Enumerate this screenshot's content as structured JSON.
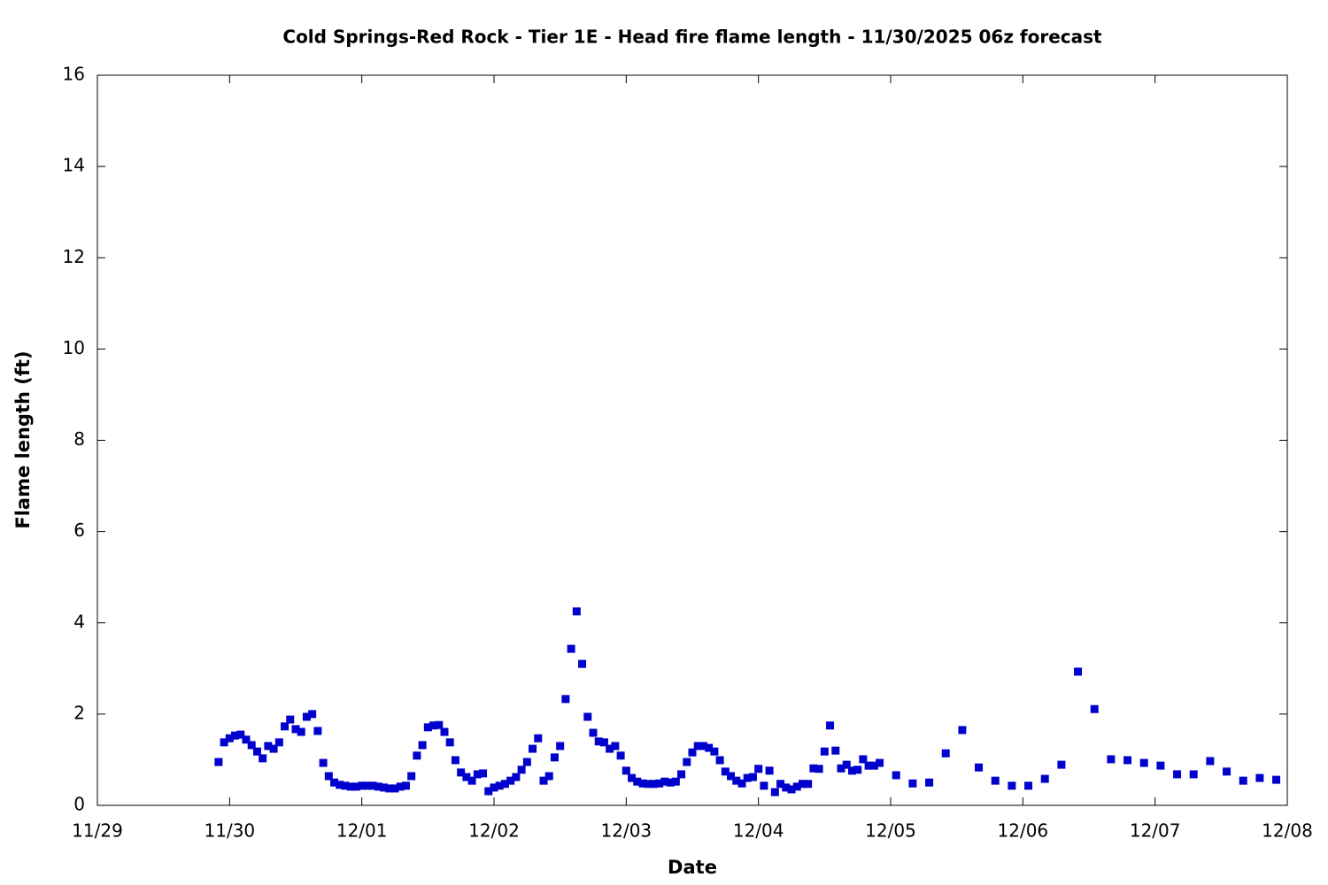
{
  "chart_data": {
    "type": "scatter",
    "title": "Cold Springs-Red Rock - Tier 1E - Head fire flame length - 11/30/2025 06z forecast",
    "x_label": "Date",
    "y_label": "Flame length (ft)",
    "color": "#0000cc",
    "xlim": [
      0,
      216
    ],
    "xticks": [
      {
        "value": 0,
        "label": "11/29"
      },
      {
        "value": 24,
        "label": "11/30"
      },
      {
        "value": 48,
        "label": "12/01"
      },
      {
        "value": 72,
        "label": "12/02"
      },
      {
        "value": 96,
        "label": "12/03"
      },
      {
        "value": 120,
        "label": "12/04"
      },
      {
        "value": 144,
        "label": "12/05"
      },
      {
        "value": 168,
        "label": "12/06"
      },
      {
        "value": 192,
        "label": "12/07"
      },
      {
        "value": 216,
        "label": "12/08"
      }
    ],
    "ylim": [
      0,
      16
    ],
    "yticks": [
      0,
      2,
      4,
      6,
      8,
      10,
      12,
      14,
      16
    ],
    "x": [
      22,
      23,
      24,
      25,
      26,
      27,
      28,
      29,
      30,
      31,
      32,
      33,
      34,
      35,
      36,
      37,
      38,
      39,
      40,
      41,
      42,
      43,
      44,
      45,
      46,
      47,
      48,
      49,
      50,
      51,
      52,
      53,
      54,
      55,
      56,
      57,
      58,
      59,
      60,
      61,
      62,
      63,
      64,
      65,
      66,
      67,
      68,
      69,
      70,
      71,
      72,
      73,
      74,
      75,
      76,
      77,
      78,
      79,
      80,
      81,
      82,
      83,
      84,
      85,
      86,
      87,
      88,
      89,
      90,
      91,
      92,
      93,
      94,
      95,
      96,
      97,
      98,
      99,
      100,
      101,
      102,
      103,
      104,
      105,
      106,
      107,
      108,
      109,
      110,
      111,
      112,
      113,
      114,
      115,
      116,
      117,
      118,
      119,
      120,
      121,
      122,
      123,
      124,
      125,
      126,
      127,
      128,
      129,
      130,
      131,
      132,
      133,
      134,
      135,
      136,
      137,
      138,
      139,
      140,
      141,
      142,
      145,
      148,
      151,
      154,
      157,
      160,
      163,
      166,
      169,
      172,
      175,
      178,
      181,
      184,
      187,
      190,
      193,
      196,
      199,
      202,
      205,
      208,
      211,
      214
    ],
    "values": [
      0.95,
      1.38,
      1.47,
      1.53,
      1.55,
      1.44,
      1.32,
      1.18,
      1.03,
      1.3,
      1.24,
      1.38,
      1.73,
      1.88,
      1.67,
      1.61,
      1.94,
      2.0,
      1.63,
      0.93,
      0.64,
      0.5,
      0.45,
      0.43,
      0.41,
      0.41,
      0.43,
      0.43,
      0.43,
      0.41,
      0.39,
      0.37,
      0.37,
      0.41,
      0.43,
      0.64,
      1.09,
      1.32,
      1.71,
      1.75,
      1.76,
      1.61,
      1.38,
      0.99,
      0.72,
      0.62,
      0.54,
      0.68,
      0.7,
      0.31,
      0.39,
      0.43,
      0.47,
      0.54,
      0.62,
      0.78,
      0.95,
      1.24,
      1.47,
      0.54,
      0.64,
      1.05,
      1.3,
      2.33,
      3.43,
      4.25,
      3.1,
      1.94,
      1.59,
      1.4,
      1.38,
      1.24,
      1.3,
      1.09,
      0.76,
      0.6,
      0.52,
      0.48,
      0.47,
      0.47,
      0.48,
      0.52,
      0.5,
      0.52,
      0.68,
      0.95,
      1.16,
      1.3,
      1.3,
      1.26,
      1.18,
      0.99,
      0.74,
      0.64,
      0.54,
      0.48,
      0.6,
      0.62,
      0.8,
      0.43,
      0.76,
      0.29,
      0.47,
      0.39,
      0.35,
      0.41,
      0.47,
      0.47,
      0.81,
      0.8,
      1.18,
      1.75,
      1.2,
      0.81,
      0.89,
      0.76,
      0.78,
      1.01,
      0.87,
      0.87,
      0.93,
      0.66,
      0.48,
      0.5,
      1.14,
      1.65,
      0.83,
      0.54,
      0.43,
      0.43,
      0.58,
      0.89,
      2.93,
      2.11,
      1.01,
      0.99,
      0.93,
      0.87,
      0.68,
      0.68,
      0.97,
      0.74,
      0.54,
      0.6,
      0.56
    ]
  }
}
